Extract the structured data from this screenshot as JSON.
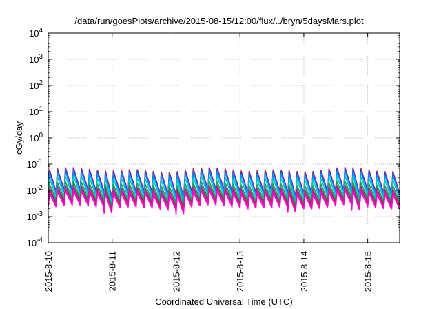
{
  "chart_data": {
    "type": "line",
    "title": "/data/run/goesPlots/archive/2015-08-15/12:00/flux/../bryn/5daysMars.plot",
    "xlabel": "Coordinated Universal Time (UTC)",
    "ylabel": "cGy/day",
    "yscale": "log",
    "ylim": [
      0.0001,
      10000
    ],
    "yticks": [
      {
        "value": 0.0001,
        "base": "10",
        "exp": "-4"
      },
      {
        "value": 0.001,
        "base": "10",
        "exp": "-3"
      },
      {
        "value": 0.01,
        "base": "10",
        "exp": "-2"
      },
      {
        "value": 0.1,
        "base": "10",
        "exp": "-1"
      },
      {
        "value": 1,
        "base": "10",
        "exp": "0"
      },
      {
        "value": 10,
        "base": "10",
        "exp": "1"
      },
      {
        "value": 100,
        "base": "10",
        "exp": "2"
      },
      {
        "value": 1000,
        "base": "10",
        "exp": "3"
      },
      {
        "value": 10000,
        "base": "10",
        "exp": "4"
      }
    ],
    "xlim": [
      "2015-08-10 00:00",
      "2015-08-15 12:00"
    ],
    "xticks": [
      {
        "value": "2015-08-10",
        "label": "2015-8-10"
      },
      {
        "value": "2015-08-11",
        "label": "2015-8-11"
      },
      {
        "value": "2015-08-12",
        "label": "2015-8-12"
      },
      {
        "value": "2015-08-13",
        "label": "2015-8-13"
      },
      {
        "value": "2015-08-14",
        "label": "2015-8-14"
      },
      {
        "value": "2015-08-15",
        "label": "2015-8-15"
      }
    ],
    "grid": true,
    "legend": "none",
    "series": [
      {
        "color": "#ff2a00",
        "peak": 0.062,
        "trough": 0.0095
      },
      {
        "color": "#3a3ad8",
        "peak": 0.056,
        "trough": 0.009
      },
      {
        "color": "#0090ff",
        "peak": 0.045,
        "trough": 0.0075
      },
      {
        "color": "#00c8c8",
        "peak": 0.03,
        "trough": 0.0055
      },
      {
        "color": "#1f9e4a",
        "peak": 0.018,
        "trough": 0.0042
      },
      {
        "color": "#7a3a9a",
        "peak": 0.013,
        "trough": 0.0034
      },
      {
        "color": "#cc1a70",
        "peak": 0.01,
        "trough": 0.0029
      },
      {
        "color": "#ff00d0",
        "peak": 0.008,
        "trough": 0.0023
      }
    ]
  }
}
